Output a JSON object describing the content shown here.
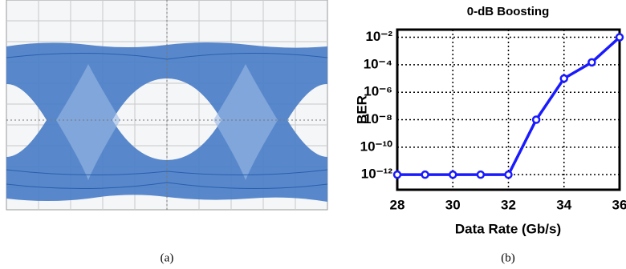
{
  "captions": [
    "(a)",
    "(b)"
  ],
  "chart_data": {
    "type": "line",
    "title": "0-dB Boosting",
    "x_label": "Data Rate (Gb/s)",
    "y_label": "BER",
    "x": [
      28,
      29,
      30,
      31,
      32,
      33,
      34,
      35,
      36
    ],
    "series": [
      {
        "name": "BER",
        "color": "#1a1aff",
        "values": [
          1e-12,
          1e-12,
          1e-12,
          1e-12,
          1e-12,
          1e-08,
          1e-05,
          0.00015,
          0.01
        ]
      }
    ],
    "xlim": [
      28,
      36
    ],
    "xticks": [
      28,
      30,
      32,
      34,
      36
    ],
    "ylim": [
      8e-14,
      0.036
    ],
    "log_y": true,
    "yticks": [
      {
        "value": 0.01,
        "label": "10⁻²"
      },
      {
        "value": 0.0001,
        "label": "10⁻⁴"
      },
      {
        "value": 1e-06,
        "label": "10⁻⁶"
      },
      {
        "value": 1e-08,
        "label": "10⁻⁸"
      },
      {
        "value": 1e-10,
        "label": "10⁻¹⁰"
      },
      {
        "value": 1e-12,
        "label": "10⁻¹²"
      }
    ],
    "grid": true
  }
}
